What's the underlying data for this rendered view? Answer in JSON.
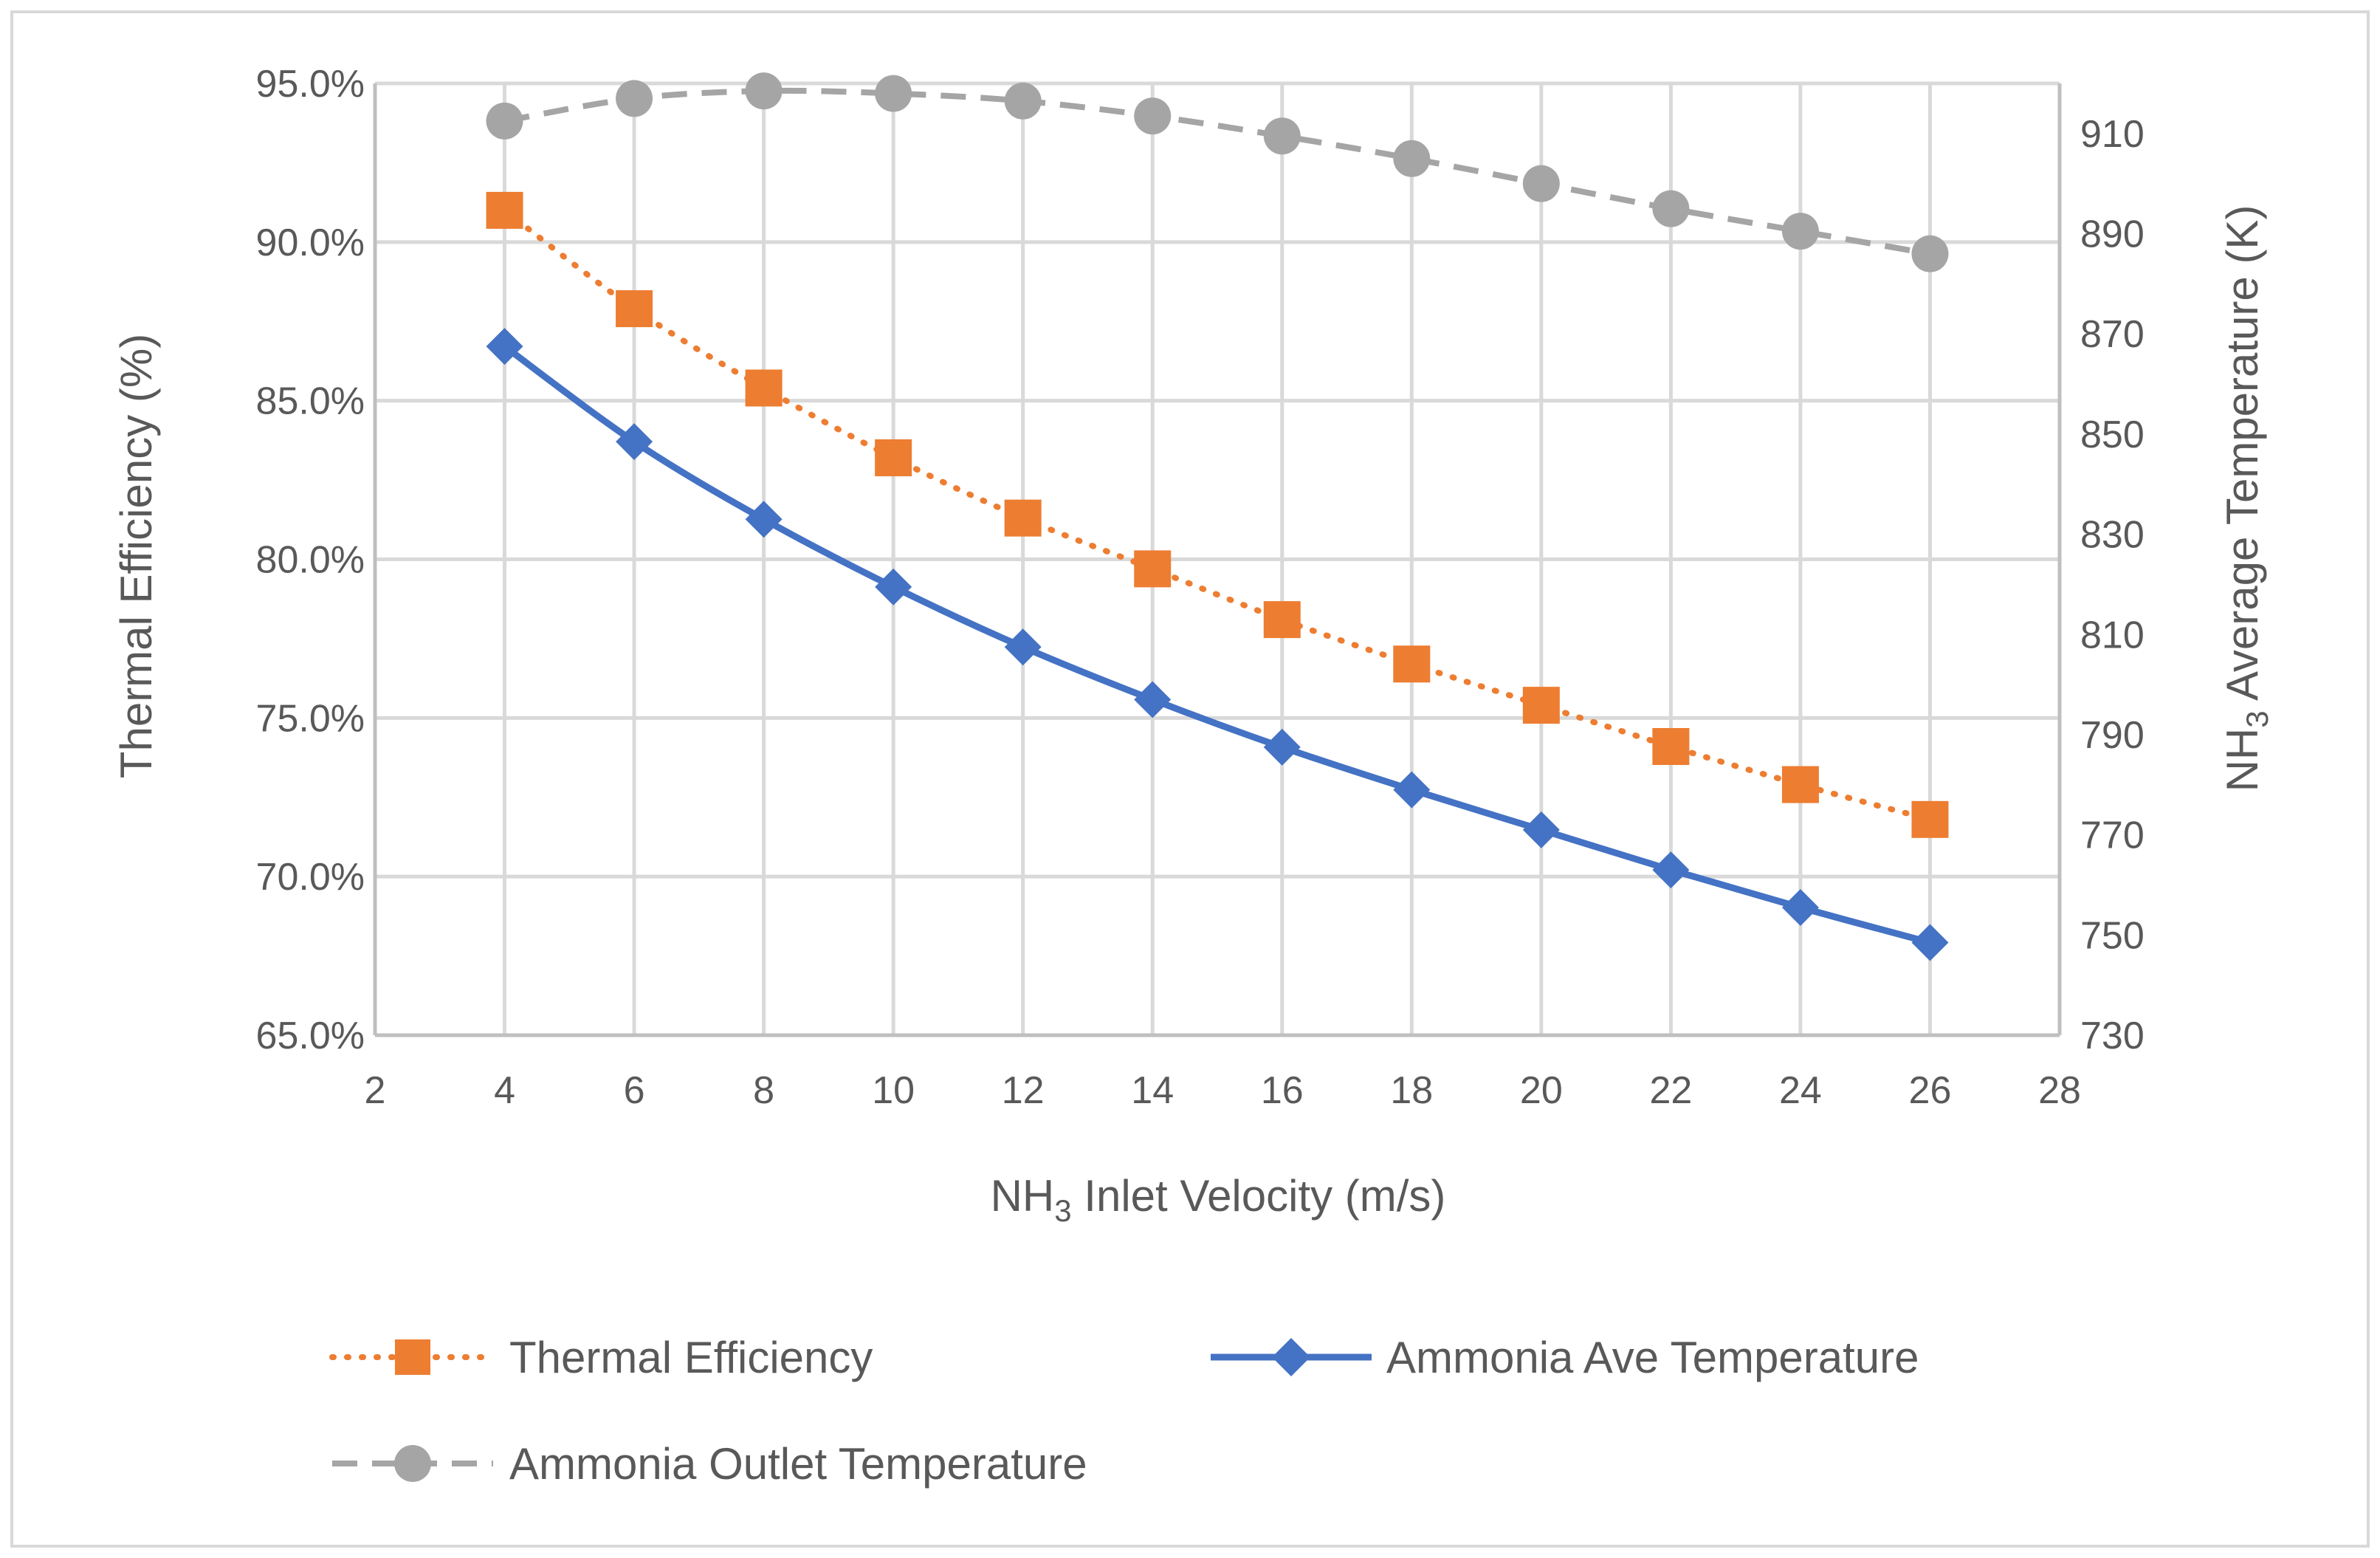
{
  "chart_data": {
    "type": "line",
    "title": "",
    "xlabel_main": "NH",
    "xlabel_sub": "3",
    "xlabel_rest": " Inlet Velocity (m/s)",
    "ylabel_left": "Thermal Efficiency (%)",
    "ylabel_right_main": "NH",
    "ylabel_right_sub": "3",
    "ylabel_right_rest": " Average Temperature (K)",
    "x_range": [
      2,
      28
    ],
    "x_ticks": [
      "2",
      "4",
      "6",
      "8",
      "10",
      "12",
      "14",
      "16",
      "18",
      "20",
      "22",
      "24",
      "26",
      "28"
    ],
    "y_left_range": [
      65.0,
      95.0
    ],
    "y_left_ticks": [
      "65.0%",
      "70.0%",
      "75.0%",
      "80.0%",
      "85.0%",
      "90.0%",
      "95.0%"
    ],
    "y_right_range": [
      730,
      920
    ],
    "y_right_ticks": [
      "730",
      "750",
      "770",
      "790",
      "810",
      "830",
      "850",
      "870",
      "890",
      "910"
    ],
    "grid": true,
    "legend_position": "bottom",
    "x": [
      4,
      6,
      8,
      10,
      12,
      14,
      16,
      18,
      20,
      22,
      24,
      26
    ],
    "series": [
      {
        "name": "Thermal Efficiency",
        "axis": "left",
        "color": "#ed7d31",
        "marker": "square",
        "line_style": "dotted",
        "values": [
          91.0,
          87.9,
          85.4,
          83.2,
          81.3,
          79.7,
          78.1,
          76.7,
          75.4,
          74.1,
          72.9,
          71.8
        ]
      },
      {
        "name": "Ammonia Ave Temperature",
        "axis": "right",
        "color": "#4472c4",
        "marker": "diamond",
        "line_style": "solid",
        "values": [
          867.5,
          848.5,
          833.0,
          819.5,
          807.5,
          797.0,
          787.5,
          779.0,
          771.0,
          763.0,
          755.5,
          748.5
        ]
      },
      {
        "name": "Ammonia Outlet Temperature",
        "axis": "right",
        "color": "#a5a5a5",
        "marker": "circle",
        "line_style": "dashed",
        "values": [
          912.5,
          917.0,
          918.5,
          918.0,
          916.5,
          913.5,
          909.5,
          905.0,
          900.0,
          895.0,
          890.5,
          886.0
        ]
      }
    ]
  }
}
